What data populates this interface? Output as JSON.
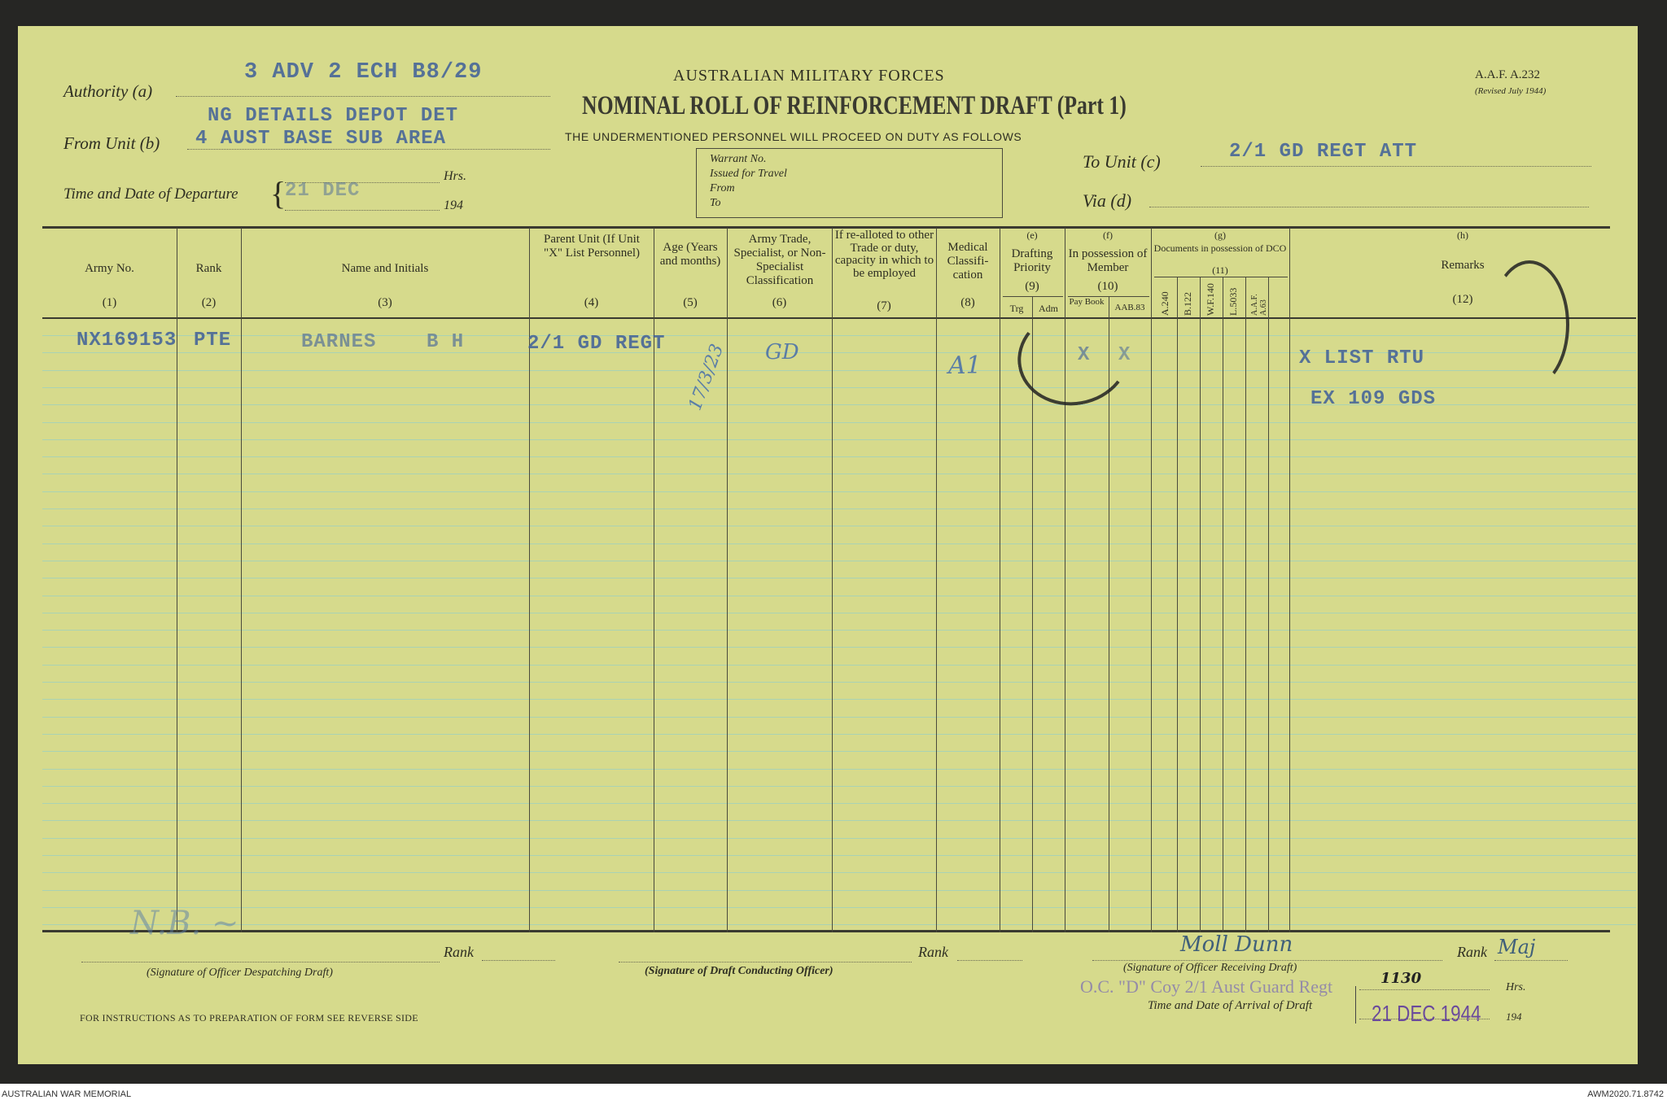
{
  "form": {
    "org": "AUSTRALIAN MILITARY FORCES",
    "title": "NOMINAL ROLL OF REINFORCEMENT DRAFT (Part 1)",
    "subtitle": "THE UNDERMENTIONED PERSONNEL WILL PROCEED ON DUTY AS FOLLOWS",
    "form_no": "A.A.F. A.232",
    "revised": "(Revised July 1944)"
  },
  "header_fields": {
    "authority_label": "Authority (a)",
    "authority_value": "3 ADV 2 ECH B8/29",
    "from_unit_label": "From Unit (b)",
    "from_unit_value_1": "NG DETAILS DEPOT DET",
    "from_unit_value_2": "4 AUST BASE SUB AREA",
    "departure_label": "Time and Date of Departure",
    "departure_value": "21 DEC",
    "hrs": "Hrs.",
    "year": "194",
    "to_unit_label": "To Unit (c)",
    "to_unit_value": "2/1 GD REGT ATT",
    "via_label": "Via (d)",
    "warrant": [
      "Warrant No.",
      "Issued for Travel",
      "From",
      "To"
    ]
  },
  "columns": [
    {
      "title": "Army No.",
      "num": "(1)"
    },
    {
      "title": "Rank",
      "num": "(2)"
    },
    {
      "title": "Name and Initials",
      "num": "(3)"
    },
    {
      "title": "Parent Unit (If Unit \"X\" List Personnel)",
      "num": "(4)"
    },
    {
      "title": "Age (Years and months)",
      "num": "(5)"
    },
    {
      "title": "Army Trade, Specialist, or Non-Specialist Classification",
      "num": "(6)"
    },
    {
      "title": "If re-alloted to other Trade or duty, capacity in which to be employed",
      "num": "(7)"
    },
    {
      "title": "Medical Classifi-cation",
      "num": "(8)"
    },
    {
      "letter": "(e)",
      "title": "Drafting Priority",
      "num": "(9)",
      "sub": [
        "Trg",
        "Adm"
      ]
    },
    {
      "letter": "(f)",
      "title": "In possession of Member",
      "num": "(10)",
      "sub": [
        "Pay Book",
        "AAB.83"
      ]
    },
    {
      "letter": "(g)",
      "title": "Documents in possession of DCO",
      "num": "(11)",
      "sub": [
        "A.240",
        "B.122",
        "W.F.140",
        "L.5033",
        "A.A.F. A.63"
      ]
    },
    {
      "letter": "(h)",
      "title": "Remarks",
      "num": "(12)"
    }
  ],
  "rows": [
    {
      "army_no": "NX169153",
      "rank": "PTE",
      "name": "BARNES",
      "initials": "B H",
      "parent_unit": "2/1 GD REGT",
      "age": "17/3/23",
      "trade": "GD",
      "medical": "A1",
      "possession": [
        "X",
        "X"
      ],
      "remarks_1": "X LIST RTU",
      "remarks_2": "EX 109 GDS"
    }
  ],
  "footer": {
    "rank": "Rank",
    "sig_despatch": "(Signature of Officer Despatching Draft)",
    "sig_conduct": "(Signature of Draft Conducting Officer)",
    "sig_receive": "(Signature of Officer Receiving Draft)",
    "receiving_rank": "Maj",
    "receiving_unit": "O.C. \"D\" Coy 2/1 Aust Guard Regt",
    "arrival_label": "Time and Date of Arrival of Draft",
    "arrival_time": "1130",
    "arrival_date": "21 DEC 1944",
    "hrs": "Hrs.",
    "year": "194",
    "instructions": "FOR INSTRUCTIONS AS TO PREPARATION OF FORM SEE REVERSE SIDE"
  },
  "credits": {
    "left": "AUSTRALIAN WAR MEMORIAL",
    "right": "AWM2020.71.8742"
  }
}
